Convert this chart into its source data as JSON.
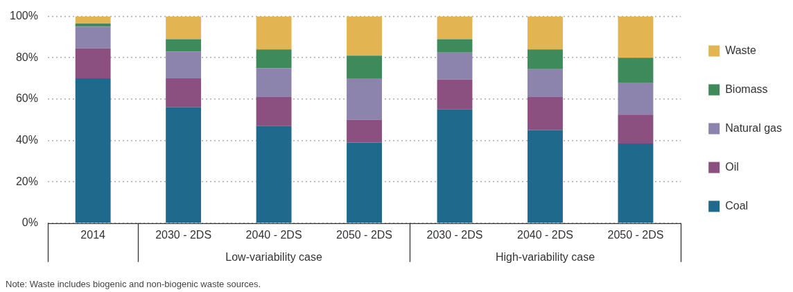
{
  "chart_data": {
    "type": "bar",
    "stacked": true,
    "categories": [
      "2014",
      "2030 - 2DS",
      "2040 - 2DS",
      "2050 - 2DS",
      "2030 - 2DS",
      "2040 - 2DS",
      "2050 - 2DS"
    ],
    "series": [
      {
        "name": "Coal",
        "color": "#1f6a8c",
        "values": [
          70,
          56,
          47,
          39,
          55,
          45,
          38.5
        ]
      },
      {
        "name": "Oil",
        "color": "#8b5080",
        "values": [
          14.5,
          14,
          14,
          11,
          14.5,
          16,
          14
        ]
      },
      {
        "name": "Natural gas",
        "color": "#8c84ad",
        "values": [
          10.5,
          13,
          14,
          20,
          13,
          13.5,
          15.5
        ]
      },
      {
        "name": "Biomass",
        "color": "#3f8a5a",
        "values": [
          1.5,
          6,
          9,
          11,
          6.5,
          9.5,
          12
        ]
      },
      {
        "name": "Waste",
        "color": "#e2b552",
        "values": [
          3.5,
          11,
          16,
          19,
          11,
          16,
          20
        ]
      }
    ],
    "ylim": [
      0,
      100
    ],
    "yticks": [
      {
        "value": 0,
        "label": "0%"
      },
      {
        "value": 20,
        "label": "20%"
      },
      {
        "value": 40,
        "label": "40%"
      },
      {
        "value": 60,
        "label": "60%"
      },
      {
        "value": 80,
        "label": "80%"
      },
      {
        "value": 100,
        "label": "100%"
      }
    ],
    "grid": "y",
    "legend": "right",
    "annotations": [
      "Low-variability case",
      "High-variability case",
      "Note: Waste includes biogenic and non-biogenic waste sources."
    ]
  }
}
